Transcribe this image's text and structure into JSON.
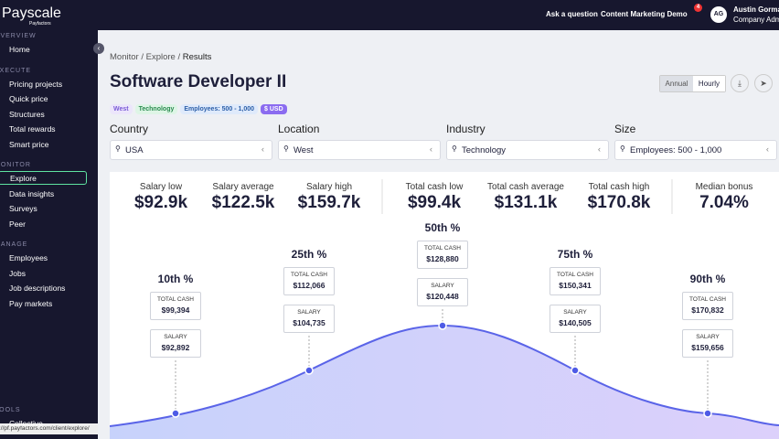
{
  "brand": {
    "name": "Payscale",
    "sub": "Payfactors"
  },
  "topbar": {
    "ask": "Ask a question",
    "company": "Content Marketing Demo",
    "notifications": "4",
    "avatar": "AG",
    "user_name": "Austin Gorman",
    "user_role": "Company Admin"
  },
  "sidebar": {
    "sections": [
      {
        "title": "OVERVIEW",
        "items": [
          "Home"
        ]
      },
      {
        "title": "EXECUTE",
        "items": [
          "Pricing projects",
          "Quick price",
          "Structures",
          "Total rewards",
          "Smart price"
        ]
      },
      {
        "title": "MONITOR",
        "items": [
          "Explore",
          "Data insights",
          "Surveys",
          "Peer"
        ]
      },
      {
        "title": "MANAGE",
        "items": [
          "Employees",
          "Jobs",
          "Job descriptions",
          "Pay markets"
        ]
      },
      {
        "title": "TOOLS",
        "items": [
          "Collective"
        ]
      }
    ],
    "active": "Explore"
  },
  "status_url": "://pf.payfactors.com/client/explore/",
  "breadcrumb": [
    "Monitor",
    "Explore",
    "Results"
  ],
  "header": {
    "title": "Software Developer II",
    "tags": [
      "West",
      "Technology",
      "Employees: 500 - 1,000",
      "$ USD"
    ],
    "toggle": [
      "Annual",
      "Hourly"
    ]
  },
  "filters": [
    {
      "label": "Country",
      "value": "USA"
    },
    {
      "label": "Location",
      "value": "West"
    },
    {
      "label": "Industry",
      "value": "Technology"
    },
    {
      "label": "Size",
      "value": "Employees: 500 - 1,000"
    }
  ],
  "stats": [
    {
      "label": "Salary low",
      "value": "$92.9k"
    },
    {
      "label": "Salary average",
      "value": "$122.5k"
    },
    {
      "label": "Salary high",
      "value": "$159.7k"
    },
    {
      "label": "Total cash low",
      "value": "$99.4k"
    },
    {
      "label": "Total cash average",
      "value": "$131.1k"
    },
    {
      "label": "Total cash high",
      "value": "$170.8k"
    },
    {
      "label": "Median bonus",
      "value": "7.04%"
    }
  ],
  "percentiles": [
    {
      "label": "10th %",
      "total_cash_label": "TOTAL CASH",
      "total_cash": "$99,394",
      "salary_label": "SALARY",
      "salary": "$92,892"
    },
    {
      "label": "25th %",
      "total_cash_label": "TOTAL CASH",
      "total_cash": "$112,066",
      "salary_label": "SALARY",
      "salary": "$104,735"
    },
    {
      "label": "50th %",
      "total_cash_label": "TOTAL CASH",
      "total_cash": "$128,880",
      "salary_label": "SALARY",
      "salary": "$120,448"
    },
    {
      "label": "75th %",
      "total_cash_label": "TOTAL CASH",
      "total_cash": "$150,341",
      "salary_label": "SALARY",
      "salary": "$140,505"
    },
    {
      "label": "90th %",
      "total_cash_label": "TOTAL CASH",
      "total_cash": "$170,832",
      "salary_label": "SALARY",
      "salary": "$159,656"
    }
  ]
}
